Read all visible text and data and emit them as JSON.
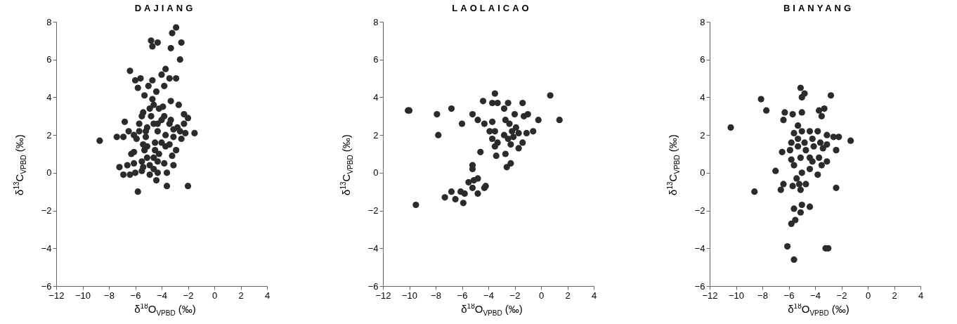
{
  "chart_data": [
    {
      "type": "scatter",
      "title": "DAJIANG",
      "xlabel": "δ$^{18}$O$_{VPBD}$ (‰)",
      "ylabel": "δ$^{13}$C$_{VPBD}$ (‰)",
      "color": "#2b2b2b",
      "marker": "circle",
      "xlim": [
        -12,
        4
      ],
      "xticks": [
        -12,
        -10,
        -8,
        -6,
        -4,
        -2,
        0,
        2,
        4
      ],
      "ylim": [
        -6,
        8
      ],
      "yticks": [
        -6,
        -4,
        -2,
        0,
        2,
        4,
        6,
        8
      ],
      "x": [
        -2.9,
        -3.2,
        -4.8,
        -4.7,
        -4.3,
        -3.3,
        -2.5,
        -2.6,
        -6.4,
        -3.7,
        -6.0,
        -5.6,
        -5.8,
        -5.0,
        -4.7,
        -4.0,
        -3.4,
        -2.9,
        -3.8,
        -5.3,
        -4.4,
        -4.7,
        -3.3,
        -2.7,
        -5.4,
        -4.2,
        -2.3,
        -2.0,
        -6.8,
        -6.5,
        -7.4,
        -6.9,
        -8.7,
        -1.5,
        -2.2,
        -6.1,
        -5.9,
        -5.2,
        -4.6,
        -4.0,
        -3.4,
        -2.8,
        -4.5,
        -3.7,
        -3.1,
        -5.1,
        -5.7,
        -4.0,
        -2.5,
        -6.3,
        -6.1,
        -5.3,
        -4.6,
        -4.2,
        -2.9,
        -3.2,
        -7.2,
        -6.6,
        -6.1,
        -5.5,
        -4.9,
        -4.3,
        -3.8,
        -3.1,
        -6.9,
        -6.4,
        -6.0,
        -5.5,
        -4.9,
        -4.3,
        -3.6,
        -4.4,
        -3.6,
        -2.0,
        -5.8,
        -5.2,
        -4.3,
        -4.9,
        -4.6,
        -5.5,
        -3.8,
        -3.3,
        -2.6,
        -3.4,
        -5.1,
        -4.5,
        -3.7,
        -3.1,
        -2.3,
        -4.3,
        -3.9,
        -4.8,
        -5.7,
        -5.4,
        -5.1,
        -5.4,
        -4.6
      ],
      "values": [
        7.7,
        7.4,
        7.0,
        6.7,
        6.9,
        6.6,
        6.9,
        6.0,
        5.4,
        5.5,
        4.9,
        5.0,
        4.5,
        4.6,
        4.9,
        5.2,
        5.0,
        5.0,
        4.6,
        4.1,
        4.3,
        3.9,
        3.8,
        3.6,
        3.2,
        3.4,
        3.1,
        2.9,
        2.7,
        2.2,
        1.9,
        1.9,
        1.7,
        2.1,
        2.1,
        2.0,
        1.8,
        2.2,
        2.6,
        2.8,
        2.6,
        2.4,
        1.6,
        2.0,
        1.9,
        2.4,
        2.6,
        1.6,
        1.8,
        1.0,
        1.1,
        1.2,
        0.8,
        1.0,
        1.2,
        0.9,
        0.3,
        0.4,
        0.5,
        0.6,
        0.4,
        0.6,
        0.5,
        0.4,
        -0.1,
        -0.1,
        0.0,
        0.1,
        -0.1,
        0.0,
        0.0,
        -0.4,
        -0.7,
        -0.7,
        -1.0,
        1.9,
        2.2,
        3.4,
        3.6,
        3.0,
        3.0,
        2.8,
        2.2,
        1.5,
        1.4,
        1.2,
        1.4,
        2.3,
        2.6,
        2.6,
        3.5,
        3.0,
        2.2,
        1.5,
        0.8,
        0.3,
        0.2
      ]
    },
    {
      "type": "scatter",
      "title": "LAOLAICAO",
      "xlabel": "δ$^{18}$O$_{VPBD}$ (‰)",
      "ylabel": "δ$^{13}$C$_{VPBD}$ (‰)",
      "color": "#2b2b2b",
      "marker": "circle",
      "xlim": [
        -12,
        4
      ],
      "xticks": [
        -12,
        -10,
        -8,
        -6,
        -4,
        -2,
        0,
        2,
        4
      ],
      "ylim": [
        -6,
        8
      ],
      "yticks": [
        -6,
        -4,
        -2,
        0,
        2,
        4,
        6,
        8
      ],
      "x": [
        -10.1,
        -10.0,
        -9.5,
        -7.9,
        -7.8,
        -6.8,
        -6.0,
        -5.2,
        -4.8,
        -4.4,
        -4.3,
        -3.7,
        -3.5,
        -3.7,
        -3.3,
        -2.5,
        -2.8,
        -2.0,
        -1.4,
        -1.3,
        -1.0,
        -0.2,
        0.7,
        1.4,
        -2.7,
        -2.4,
        -1.9,
        -3.9,
        -3.5,
        -2.8,
        -2.2,
        -1.7,
        -1.1,
        -0.6,
        -3.7,
        -3.3,
        -2.5,
        -2.1,
        -1.4,
        -3.5,
        -2.3,
        -1.7,
        -3.4,
        -2.7,
        -4.6,
        -2.3,
        -2.6,
        -5.2,
        -5.2,
        -5.5,
        -5.1,
        -4.8,
        -5.2,
        -4.8,
        -4.3,
        -4.2,
        -6.1,
        -5.8,
        -6.8,
        -7.3,
        -6.5,
        -5.9
      ],
      "values": [
        3.3,
        3.3,
        -1.7,
        3.1,
        2.0,
        3.4,
        2.6,
        3.1,
        2.8,
        3.8,
        2.6,
        2.7,
        4.2,
        3.7,
        3.7,
        3.7,
        3.4,
        3.1,
        3.7,
        3.0,
        3.1,
        2.8,
        4.1,
        2.8,
        2.8,
        2.6,
        2.4,
        2.2,
        2.2,
        2.0,
        2.2,
        2.1,
        2.1,
        2.2,
        1.8,
        1.6,
        1.8,
        1.9,
        1.6,
        1.4,
        1.5,
        1.3,
        0.9,
        1.0,
        1.1,
        0.5,
        0.3,
        0.4,
        0.2,
        -0.5,
        -0.4,
        -0.3,
        -0.8,
        -1.1,
        -0.8,
        -0.7,
        -1.0,
        -1.1,
        -1.0,
        -1.3,
        -1.4,
        -1.6
      ]
    },
    {
      "type": "scatter",
      "title": "BIANYANG",
      "xlabel": "δ$^{18}$O$_{VPBD}$ (‰)",
      "ylabel": "δ$^{13}$C$_{VPBD}$ (‰)",
      "color": "#2b2b2b",
      "marker": "circle",
      "xlim": [
        -12,
        4
      ],
      "xticks": [
        -12,
        -10,
        -8,
        -6,
        -4,
        -2,
        0,
        2,
        4
      ],
      "ylim": [
        -6,
        8
      ],
      "yticks": [
        -6,
        -4,
        -2,
        0,
        2,
        4,
        6,
        8
      ],
      "x": [
        -10.4,
        -8.1,
        -7.7,
        -8.6,
        -7.0,
        -6.5,
        -6.3,
        -6.4,
        -6.6,
        -6.4,
        -6.1,
        -5.6,
        -5.8,
        -5.5,
        -5.6,
        -5.1,
        -5.0,
        -4.4,
        -3.2,
        -3.0,
        -5.1,
        -4.8,
        -5.0,
        -2.8,
        -5.7,
        -5.0,
        -3.3,
        -3.7,
        -3.5,
        -5.3,
        -5.6,
        -5.0,
        -4.4,
        -3.8,
        -3.1,
        -2.6,
        -2.2,
        -1.3,
        -2.4,
        -5.8,
        -5.9,
        -5.3,
        -4.8,
        -4.2,
        -3.6,
        -3.1,
        -5.3,
        -4.7,
        -4.1,
        -3.4,
        -5.1,
        -4.4,
        -3.7,
        -3.5,
        -3.1,
        -5.8,
        -5.6,
        -4.4,
        -5.0,
        -3.8,
        -5.4,
        -5.7,
        -5.2,
        -4.7,
        -5.1,
        -2.4,
        -4.2
      ],
      "values": [
        2.4,
        3.9,
        3.3,
        -1.0,
        0.1,
        1.1,
        3.2,
        2.8,
        -0.9,
        -0.6,
        -3.9,
        -4.6,
        -2.7,
        -2.5,
        -1.9,
        -2.1,
        -1.7,
        -1.8,
        -4.0,
        -4.0,
        4.5,
        4.2,
        4.0,
        4.1,
        3.1,
        3.2,
        3.4,
        3.3,
        3.0,
        2.5,
        2.1,
        2.2,
        2.2,
        2.2,
        2.0,
        1.9,
        1.9,
        1.7,
        1.2,
        1.6,
        1.2,
        1.8,
        1.6,
        1.8,
        1.6,
        1.5,
        1.4,
        1.2,
        1.4,
        1.3,
        0.8,
        0.8,
        0.8,
        0.4,
        0.6,
        0.7,
        0.4,
        0.2,
        0.0,
        -0.1,
        -0.3,
        -0.7,
        -0.6,
        -0.6,
        -0.9,
        -0.8,
        0.6
      ]
    }
  ]
}
